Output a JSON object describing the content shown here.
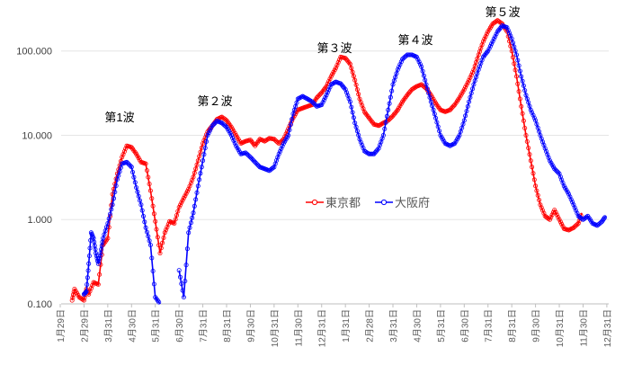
{
  "chart_data": {
    "type": "line",
    "y_scale": "log",
    "ylim": [
      0.1,
      300
    ],
    "y_ticks": [
      "0.100",
      "1.000",
      "10.000",
      "100.000"
    ],
    "x_ticks": [
      "1月29日",
      "2月29日",
      "3月31日",
      "4月30日",
      "5月31日",
      "6月30日",
      "7月31日",
      "8月31日",
      "9月30日",
      "10月31日",
      "11月30日",
      "12月31日",
      "1月31日",
      "2月28日",
      "3月31日",
      "4月30日",
      "5月31日",
      "6月30日",
      "7月31日",
      "8月31日",
      "9月30日",
      "10月31日",
      "11月30日",
      "12月31日"
    ],
    "annotations": [
      "第1波",
      "第２波",
      "第３波",
      "第４波",
      "第５波"
    ],
    "legend_position": "center-right",
    "series": [
      {
        "name": "東京都",
        "color": "#ff0000",
        "points": [
          [
            0.5,
            0.11
          ],
          [
            0.6,
            0.15
          ],
          [
            0.8,
            0.12
          ],
          [
            1.0,
            0.11
          ],
          [
            1.1,
            0.15
          ],
          [
            1.2,
            0.13
          ],
          [
            1.4,
            0.18
          ],
          [
            1.6,
            0.17
          ],
          [
            1.8,
            0.5
          ],
          [
            2.0,
            0.6
          ],
          [
            2.2,
            2.0
          ],
          [
            2.4,
            3.5
          ],
          [
            2.6,
            5.5
          ],
          [
            2.8,
            7.5
          ],
          [
            3.0,
            7.2
          ],
          [
            3.2,
            6.0
          ],
          [
            3.4,
            4.8
          ],
          [
            3.6,
            4.6
          ],
          [
            3.8,
            2.2
          ],
          [
            4.0,
            0.95
          ],
          [
            4.2,
            0.4
          ],
          [
            4.4,
            0.7
          ],
          [
            4.6,
            0.95
          ],
          [
            4.8,
            0.9
          ],
          [
            5.0,
            1.4
          ],
          [
            5.2,
            1.8
          ],
          [
            5.4,
            2.3
          ],
          [
            5.6,
            3.2
          ],
          [
            5.8,
            5.0
          ],
          [
            6.0,
            8.0
          ],
          [
            6.2,
            11.0
          ],
          [
            6.4,
            13.0
          ],
          [
            6.6,
            15.5
          ],
          [
            6.8,
            16.5
          ],
          [
            7.0,
            15.0
          ],
          [
            7.2,
            12.5
          ],
          [
            7.4,
            10.0
          ],
          [
            7.6,
            8.0
          ],
          [
            7.8,
            8.5
          ],
          [
            8.0,
            8.8
          ],
          [
            8.2,
            7.5
          ],
          [
            8.4,
            9.0
          ],
          [
            8.6,
            8.5
          ],
          [
            8.8,
            9.2
          ],
          [
            9.0,
            9.0
          ],
          [
            9.2,
            8.0
          ],
          [
            9.4,
            9.0
          ],
          [
            9.6,
            12.0
          ],
          [
            9.8,
            16.0
          ],
          [
            10.0,
            20.0
          ],
          [
            10.2,
            21.0
          ],
          [
            10.4,
            22.0
          ],
          [
            10.6,
            23.0
          ],
          [
            10.8,
            28.0
          ],
          [
            11.0,
            32.0
          ],
          [
            11.2,
            38.0
          ],
          [
            11.4,
            50.0
          ],
          [
            11.6,
            63.0
          ],
          [
            11.8,
            85.0
          ],
          [
            12.0,
            82.0
          ],
          [
            12.2,
            70.0
          ],
          [
            12.4,
            45.0
          ],
          [
            12.6,
            27.0
          ],
          [
            12.8,
            19.0
          ],
          [
            13.0,
            16.0
          ],
          [
            13.2,
            13.5
          ],
          [
            13.4,
            13.0
          ],
          [
            13.6,
            14.0
          ],
          [
            13.8,
            15.0
          ],
          [
            14.0,
            17.0
          ],
          [
            14.2,
            20.0
          ],
          [
            14.4,
            25.0
          ],
          [
            14.6,
            30.0
          ],
          [
            14.8,
            35.0
          ],
          [
            15.0,
            38.0
          ],
          [
            15.2,
            40.0
          ],
          [
            15.4,
            36.0
          ],
          [
            15.6,
            30.0
          ],
          [
            15.8,
            24.0
          ],
          [
            16.0,
            20.0
          ],
          [
            16.2,
            19.0
          ],
          [
            16.4,
            20.0
          ],
          [
            16.6,
            23.0
          ],
          [
            16.8,
            28.0
          ],
          [
            17.0,
            35.0
          ],
          [
            17.2,
            45.0
          ],
          [
            17.4,
            60.0
          ],
          [
            17.6,
            90.0
          ],
          [
            17.8,
            130.0
          ],
          [
            18.0,
            170.0
          ],
          [
            18.2,
            210.0
          ],
          [
            18.4,
            230.0
          ],
          [
            18.6,
            210.0
          ],
          [
            18.8,
            170.0
          ],
          [
            19.0,
            100.0
          ],
          [
            19.2,
            50.0
          ],
          [
            19.4,
            22.0
          ],
          [
            19.6,
            10.0
          ],
          [
            19.8,
            5.0
          ],
          [
            20.0,
            2.5
          ],
          [
            20.2,
            1.5
          ],
          [
            20.4,
            1.1
          ],
          [
            20.6,
            1.0
          ],
          [
            20.8,
            1.3
          ],
          [
            21.0,
            1.0
          ],
          [
            21.2,
            0.78
          ],
          [
            21.4,
            0.75
          ],
          [
            21.6,
            0.8
          ],
          [
            21.8,
            0.9
          ],
          [
            21.95,
            1.2
          ]
        ]
      },
      {
        "name": "大阪府",
        "color": "#0000ff",
        "points": [
          [
            1.0,
            0.13
          ],
          [
            1.1,
            0.14
          ],
          [
            1.2,
            0.3
          ],
          [
            1.3,
            0.7
          ],
          [
            1.4,
            0.6
          ],
          [
            1.5,
            0.4
          ],
          [
            1.6,
            0.3
          ],
          [
            1.7,
            0.4
          ],
          [
            1.8,
            0.6
          ],
          [
            2.0,
            0.9
          ],
          [
            2.2,
            1.5
          ],
          [
            2.4,
            3.0
          ],
          [
            2.6,
            4.6
          ],
          [
            2.8,
            4.8
          ],
          [
            3.0,
            4.2
          ],
          [
            3.2,
            2.4
          ],
          [
            3.4,
            1.5
          ],
          [
            3.6,
            0.8
          ],
          [
            3.8,
            0.5
          ],
          [
            4.0,
            0.12
          ],
          [
            4.2,
            0.1
          ],
          [
            5.0,
            0.25
          ],
          [
            5.2,
            0.12
          ],
          [
            5.4,
            0.7
          ],
          [
            5.6,
            1.2
          ],
          [
            5.8,
            2.5
          ],
          [
            6.0,
            5.0
          ],
          [
            6.2,
            10.0
          ],
          [
            6.4,
            13.0
          ],
          [
            6.6,
            14.8
          ],
          [
            6.8,
            14.0
          ],
          [
            7.0,
            12.5
          ],
          [
            7.2,
            10.0
          ],
          [
            7.4,
            7.5
          ],
          [
            7.6,
            6.0
          ],
          [
            7.8,
            6.2
          ],
          [
            8.0,
            5.5
          ],
          [
            8.2,
            4.8
          ],
          [
            8.4,
            4.2
          ],
          [
            8.6,
            4.0
          ],
          [
            8.8,
            3.8
          ],
          [
            9.0,
            4.2
          ],
          [
            9.2,
            6.0
          ],
          [
            9.4,
            8.0
          ],
          [
            9.6,
            10.0
          ],
          [
            9.8,
            18.0
          ],
          [
            10.0,
            27.0
          ],
          [
            10.2,
            29.0
          ],
          [
            10.4,
            27.0
          ],
          [
            10.6,
            25.0
          ],
          [
            10.8,
            22.0
          ],
          [
            11.0,
            23.0
          ],
          [
            11.2,
            30.0
          ],
          [
            11.4,
            40.0
          ],
          [
            11.6,
            43.0
          ],
          [
            11.8,
            41.0
          ],
          [
            12.0,
            35.0
          ],
          [
            12.2,
            25.0
          ],
          [
            12.4,
            14.0
          ],
          [
            12.6,
            9.0
          ],
          [
            12.8,
            6.5
          ],
          [
            13.0,
            6.0
          ],
          [
            13.2,
            6.0
          ],
          [
            13.4,
            7.0
          ],
          [
            13.6,
            10.0
          ],
          [
            13.8,
            20.0
          ],
          [
            14.0,
            40.0
          ],
          [
            14.2,
            60.0
          ],
          [
            14.4,
            80.0
          ],
          [
            14.6,
            90.0
          ],
          [
            14.8,
            90.0
          ],
          [
            15.0,
            85.0
          ],
          [
            15.2,
            65.0
          ],
          [
            15.4,
            40.0
          ],
          [
            15.6,
            25.0
          ],
          [
            15.8,
            16.0
          ],
          [
            16.0,
            10.0
          ],
          [
            16.2,
            8.0
          ],
          [
            16.4,
            7.5
          ],
          [
            16.6,
            8.0
          ],
          [
            16.8,
            10.0
          ],
          [
            17.0,
            15.0
          ],
          [
            17.2,
            25.0
          ],
          [
            17.4,
            40.0
          ],
          [
            17.6,
            60.0
          ],
          [
            17.8,
            85.0
          ],
          [
            18.0,
            100.0
          ],
          [
            18.2,
            130.0
          ],
          [
            18.4,
            170.0
          ],
          [
            18.6,
            200.0
          ],
          [
            18.8,
            190.0
          ],
          [
            19.0,
            140.0
          ],
          [
            19.2,
            90.0
          ],
          [
            19.4,
            50.0
          ],
          [
            19.6,
            30.0
          ],
          [
            19.8,
            20.0
          ],
          [
            20.0,
            15.0
          ],
          [
            20.2,
            10.0
          ],
          [
            20.4,
            7.0
          ],
          [
            20.6,
            5.0
          ],
          [
            20.8,
            4.0
          ],
          [
            21.0,
            3.5
          ],
          [
            21.2,
            2.5
          ],
          [
            21.4,
            2.0
          ],
          [
            21.6,
            1.5
          ],
          [
            21.8,
            1.1
          ],
          [
            22.0,
            1.0
          ],
          [
            22.2,
            1.1
          ],
          [
            22.4,
            0.9
          ],
          [
            22.6,
            0.85
          ],
          [
            22.8,
            0.95
          ],
          [
            22.95,
            1.1
          ]
        ]
      }
    ]
  }
}
